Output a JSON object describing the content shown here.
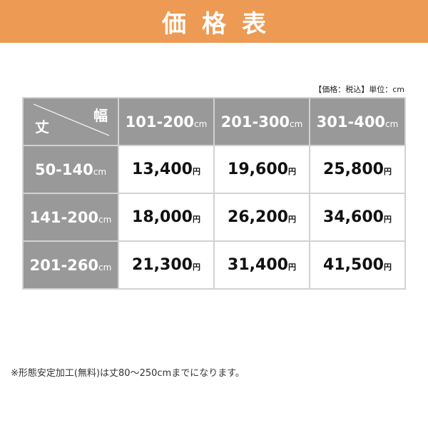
{
  "title": "価格表",
  "note_top": "【価格：税込】単位：cm",
  "corner": {
    "height_label": "丈",
    "width_label": "幅"
  },
  "unit": "cm",
  "currency": "円",
  "columns": [
    "101-200",
    "201-300",
    "301-400"
  ],
  "rows": [
    {
      "label": "50-140",
      "prices": [
        "13,400",
        "19,600",
        "25,800"
      ]
    },
    {
      "label": "141-200",
      "prices": [
        "18,000",
        "26,200",
        "34,600"
      ]
    },
    {
      "label": "201-260",
      "prices": [
        "21,300",
        "31,400",
        "41,500"
      ]
    }
  ],
  "note_bottom": "※形態安定加工(無料)は丈80～250cmまでになります。",
  "colors": {
    "banner": "#ec9a54",
    "header_cell": "#999999"
  }
}
